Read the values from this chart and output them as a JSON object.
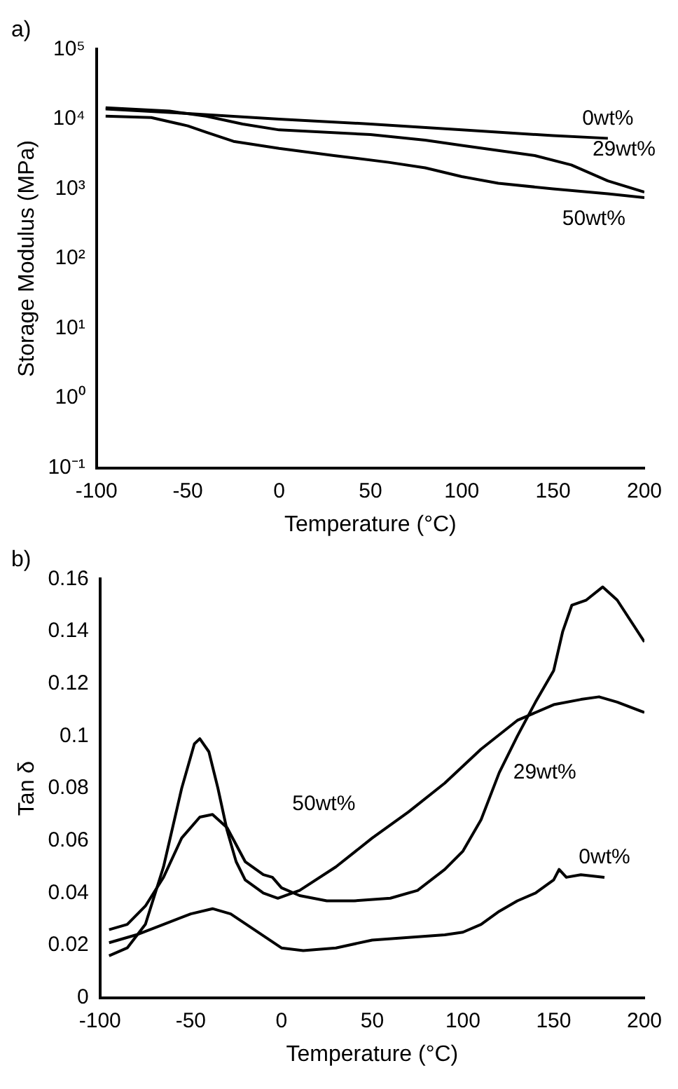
{
  "chart_data": [
    {
      "type": "line",
      "title": "a)",
      "xlabel": "Temperature (°C)",
      "ylabel": "Storage Modulus (MPa)",
      "log": "y",
      "grid": false,
      "legend": false,
      "marker": "none",
      "line_style": "solid",
      "xlim": [
        -100,
        200
      ],
      "xticks": [
        -100,
        -50,
        0,
        50,
        100,
        150,
        200
      ],
      "ylim": [
        0.1,
        100000
      ],
      "yticks": [
        {
          "value": 0.1,
          "label": "10⁻¹"
        },
        {
          "value": 1,
          "label": "10⁰"
        },
        {
          "value": 10,
          "label": "10¹"
        },
        {
          "value": 100,
          "label": "10²"
        },
        {
          "value": 1000,
          "label": "10³"
        },
        {
          "value": 10000,
          "label": "10⁴"
        },
        {
          "value": 100000,
          "label": "10⁵"
        }
      ],
      "series": [
        {
          "color": "#000000",
          "x": [
            -95,
            -50,
            0,
            50,
            100,
            150,
            180
          ],
          "values": [
            14000,
            12000,
            10000,
            8500,
            7000,
            5800,
            5300
          ]
        },
        {
          "color": "#000000",
          "x": [
            -95,
            -60,
            -40,
            -20,
            0,
            50,
            80,
            100,
            140,
            160,
            180,
            200
          ],
          "values": [
            14500,
            13000,
            11000,
            8500,
            7000,
            6000,
            5000,
            4200,
            3000,
            2200,
            1300,
            900
          ]
        },
        {
          "color": "#000000",
          "x": [
            -95,
            -70,
            -50,
            -40,
            -25,
            0,
            30,
            60,
            80,
            100,
            120,
            150,
            180,
            200
          ],
          "values": [
            11000,
            10500,
            8000,
            6500,
            4800,
            3800,
            3000,
            2400,
            2000,
            1500,
            1200,
            1000,
            850,
            750
          ]
        }
      ],
      "annotations": [
        {
          "text": "0wt%",
          "x": 180,
          "y": 5300
        },
        {
          "text": "29wt%",
          "x": 200,
          "y": 900
        },
        {
          "text": "50wt%",
          "x": 180,
          "y": 850
        }
      ]
    },
    {
      "type": "line",
      "title": "b)",
      "xlabel": "Temperature (°C)",
      "ylabel": "Tan δ",
      "grid": false,
      "legend": false,
      "marker": "none",
      "line_style": "solid",
      "xlim": [
        -100,
        200
      ],
      "xticks": [
        -100,
        -50,
        0,
        50,
        100,
        150,
        200
      ],
      "ylim": [
        0,
        0.16
      ],
      "yticks": [
        0,
        0.02,
        0.04,
        0.06,
        0.08,
        0.1,
        0.12,
        0.14,
        0.16
      ],
      "series": [
        {
          "color": "#000000",
          "x": [
            -95,
            -85,
            -75,
            -65,
            -55,
            -48,
            -45,
            -40,
            -35,
            -30,
            -25,
            -20,
            -10,
            -2,
            10,
            30,
            50,
            70,
            90,
            110,
            130,
            150,
            165,
            175,
            185,
            200
          ],
          "values": [
            0.016,
            0.019,
            0.028,
            0.05,
            0.08,
            0.097,
            0.099,
            0.094,
            0.08,
            0.064,
            0.052,
            0.045,
            0.04,
            0.038,
            0.041,
            0.05,
            0.061,
            0.071,
            0.082,
            0.095,
            0.106,
            0.112,
            0.114,
            0.115,
            0.113,
            0.109
          ]
        },
        {
          "color": "#000000",
          "x": [
            -95,
            -85,
            -75,
            -65,
            -55,
            -45,
            -38,
            -30,
            -20,
            -10,
            -5,
            0,
            10,
            25,
            40,
            60,
            75,
            90,
            100,
            110,
            120,
            130,
            140,
            150,
            155,
            160,
            168,
            177,
            185,
            200
          ],
          "values": [
            0.026,
            0.028,
            0.035,
            0.046,
            0.061,
            0.069,
            0.07,
            0.065,
            0.052,
            0.047,
            0.046,
            0.042,
            0.039,
            0.037,
            0.037,
            0.038,
            0.041,
            0.049,
            0.056,
            0.068,
            0.086,
            0.1,
            0.113,
            0.125,
            0.14,
            0.15,
            0.152,
            0.157,
            0.152,
            0.136
          ]
        },
        {
          "color": "#000000",
          "x": [
            -95,
            -80,
            -65,
            -50,
            -38,
            -28,
            -15,
            0,
            12,
            30,
            50,
            70,
            90,
            100,
            110,
            120,
            130,
            140,
            150,
            153,
            157,
            165,
            178
          ],
          "values": [
            0.021,
            0.024,
            0.028,
            0.032,
            0.034,
            0.032,
            0.026,
            0.019,
            0.018,
            0.019,
            0.022,
            0.023,
            0.024,
            0.025,
            0.028,
            0.033,
            0.037,
            0.04,
            0.045,
            0.049,
            0.046,
            0.047,
            0.046
          ]
        }
      ],
      "annotations": [
        {
          "text": "50wt%",
          "x": 50,
          "y": 0.061
        },
        {
          "text": "29wt%",
          "x": 120,
          "y": 0.086
        },
        {
          "text": "0wt%",
          "x": 178,
          "y": 0.046
        }
      ]
    }
  ]
}
